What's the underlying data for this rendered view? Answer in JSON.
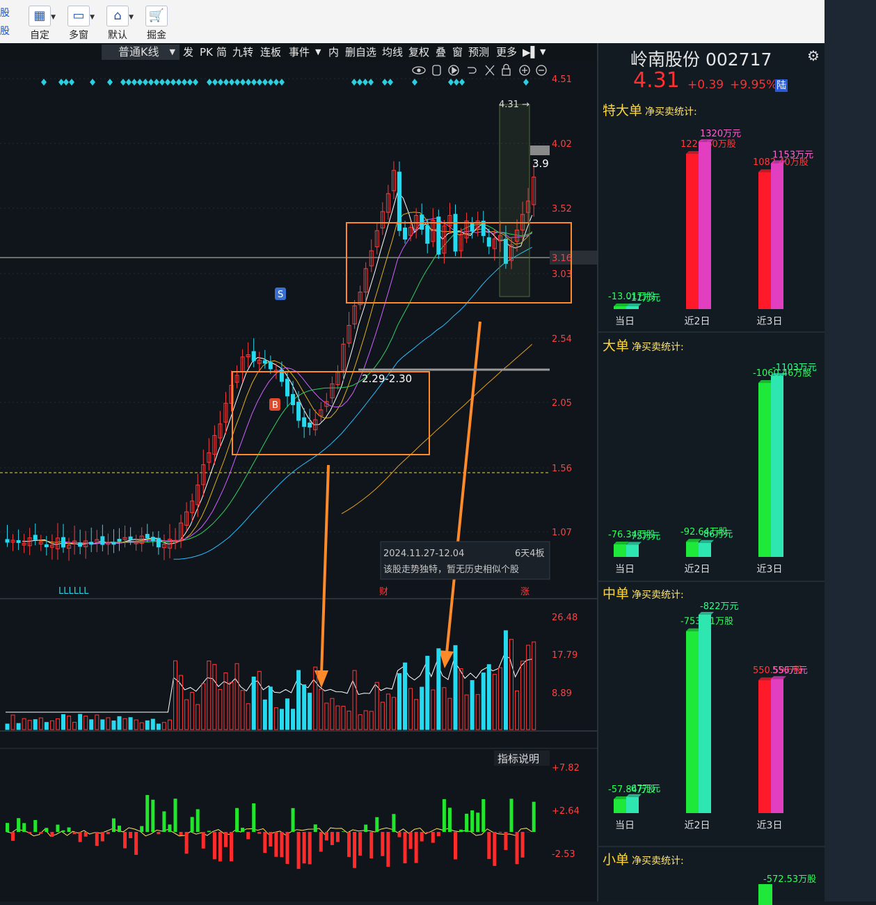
{
  "toolbar": {
    "left_labels": [
      "股",
      "股"
    ],
    "buttons": [
      {
        "label": "自定",
        "icon": "custom-page-icon"
      },
      {
        "label": "多窗",
        "icon": "monitor-icon"
      },
      {
        "label": "默认",
        "icon": "home-icon"
      },
      {
        "label": "掘金",
        "icon": "cart-icon"
      }
    ]
  },
  "menubar": {
    "kline_type": "普通K线",
    "items": [
      "发",
      "PK",
      "简",
      "九转",
      "连板",
      "事件",
      "内",
      "删自选",
      "均线",
      "复权",
      "叠",
      "窗",
      "预测",
      "更多"
    ]
  },
  "stock": {
    "name_code": "岭南股份 002717",
    "price": "4.31",
    "change": "+0.39",
    "change_pct": "+9.95%",
    "market_tag": "陆"
  },
  "chart_data": [
    {
      "type": "candlestick",
      "title": "",
      "y_ticks": [
        "4.51",
        "4.02",
        "3.52",
        "3.16",
        "3.03",
        "2.54",
        "2.05",
        "1.56",
        "1.07"
      ],
      "annotations": {
        "high_label": "4.31",
        "last_close_label": "3.9",
        "zone_label": "2.29-2.30",
        "signal_sell": "S",
        "signal_buy": "B",
        "bottom_left_marks": "LLLLLL",
        "event_cai": "财",
        "event_last": "涨",
        "info_box_dates": "2024.11.27-12.04",
        "info_box_board": "6天4板",
        "info_box_text": "该股走势独特，暂无历史相似个股"
      }
    },
    {
      "type": "bar",
      "title": "volume",
      "y_ticks": [
        "26.48",
        "17.79",
        "8.89"
      ]
    },
    {
      "type": "bar",
      "title": "indicator",
      "y_ticks": [
        "+7.82",
        "+2.64",
        "-2.53"
      ],
      "button": "指标说明"
    },
    {
      "type": "bar",
      "title": "特大单",
      "subtitle": "净买卖统计:",
      "categories": [
        "当日",
        "近2日",
        "近3日"
      ],
      "series": [
        {
          "name": "万股",
          "values": [
            -13.01,
            1226.6,
            1082.4
          ]
        },
        {
          "name": "万元",
          "values": [
            -11,
            1320,
            1153
          ]
        }
      ],
      "labels_shares": [
        "-13.01万股",
        "1226.60万股",
        "1082.40万股"
      ],
      "labels_yuan": [
        "-11万元",
        "1320万元",
        "1153万元"
      ]
    },
    {
      "type": "bar",
      "title": "大单",
      "subtitle": "净买卖统计:",
      "categories": [
        "当日",
        "近2日",
        "近3日"
      ],
      "series": [
        {
          "name": "万股",
          "values": [
            -76.34,
            -92.64,
            -1060.46
          ]
        },
        {
          "name": "万元",
          "values": [
            -75,
            -86,
            -1103
          ]
        }
      ],
      "labels_shares": [
        "-76.34万股",
        "-92.64万股",
        "-1060.46万股"
      ],
      "labels_yuan": [
        "-75万元",
        "-86万元",
        "-1103万元"
      ]
    },
    {
      "type": "bar",
      "title": "中单",
      "subtitle": "净买卖统计:",
      "categories": [
        "当日",
        "近2日",
        "近3日"
      ],
      "series": [
        {
          "name": "万股",
          "values": [
            -57.84,
            -753.81,
            550.59
          ]
        },
        {
          "name": "万元",
          "values": [
            -67,
            -822,
            556
          ]
        }
      ],
      "labels_shares": [
        "-57.84万股",
        "-753.81万股",
        "550.59万股"
      ],
      "labels_yuan": [
        "-67万元",
        "-822万元",
        "556万元"
      ]
    },
    {
      "type": "bar",
      "title": "小单",
      "subtitle": "净买卖统计:",
      "labels_shares": [
        "-572.53万股"
      ]
    }
  ]
}
